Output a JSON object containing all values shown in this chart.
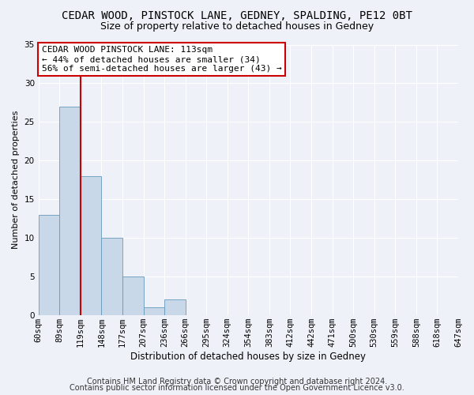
{
  "title": "CEDAR WOOD, PINSTOCK LANE, GEDNEY, SPALDING, PE12 0BT",
  "subtitle": "Size of property relative to detached houses in Gedney",
  "xlabel": "Distribution of detached houses by size in Gedney",
  "ylabel": "Number of detached properties",
  "bar_values": [
    13,
    27,
    18,
    10,
    5,
    1,
    2,
    0,
    0,
    0,
    0,
    0,
    0,
    0,
    0,
    0,
    0,
    0,
    0,
    0
  ],
  "bin_labels": [
    "60sqm",
    "89sqm",
    "119sqm",
    "148sqm",
    "177sqm",
    "207sqm",
    "236sqm",
    "266sqm",
    "295sqm",
    "324sqm",
    "354sqm",
    "383sqm",
    "412sqm",
    "442sqm",
    "471sqm",
    "500sqm",
    "530sqm",
    "559sqm",
    "588sqm",
    "618sqm",
    "647sqm"
  ],
  "bar_color": "#c8d8e8",
  "bar_edge_color": "#6699bb",
  "vline_x": 2,
  "vline_color": "#cc0000",
  "annotation_box_text": "CEDAR WOOD PINSTOCK LANE: 113sqm\n← 44% of detached houses are smaller (34)\n56% of semi-detached houses are larger (43) →",
  "annotation_box_color": "#ffffff",
  "annotation_box_edge_color": "#cc0000",
  "ylim": [
    0,
    35
  ],
  "yticks": [
    0,
    5,
    10,
    15,
    20,
    25,
    30,
    35
  ],
  "footer_line1": "Contains HM Land Registry data © Crown copyright and database right 2024.",
  "footer_line2": "Contains public sector information licensed under the Open Government Licence v3.0.",
  "bg_color": "#eef2f8",
  "plot_bg_color": "#eef2f8",
  "grid_color": "#ffffff",
  "title_fontsize": 10,
  "subtitle_fontsize": 9,
  "xlabel_fontsize": 8.5,
  "ylabel_fontsize": 8,
  "tick_fontsize": 7.5,
  "footer_fontsize": 7,
  "annotation_fontsize": 8,
  "num_bars": 20,
  "num_ticks": 21
}
